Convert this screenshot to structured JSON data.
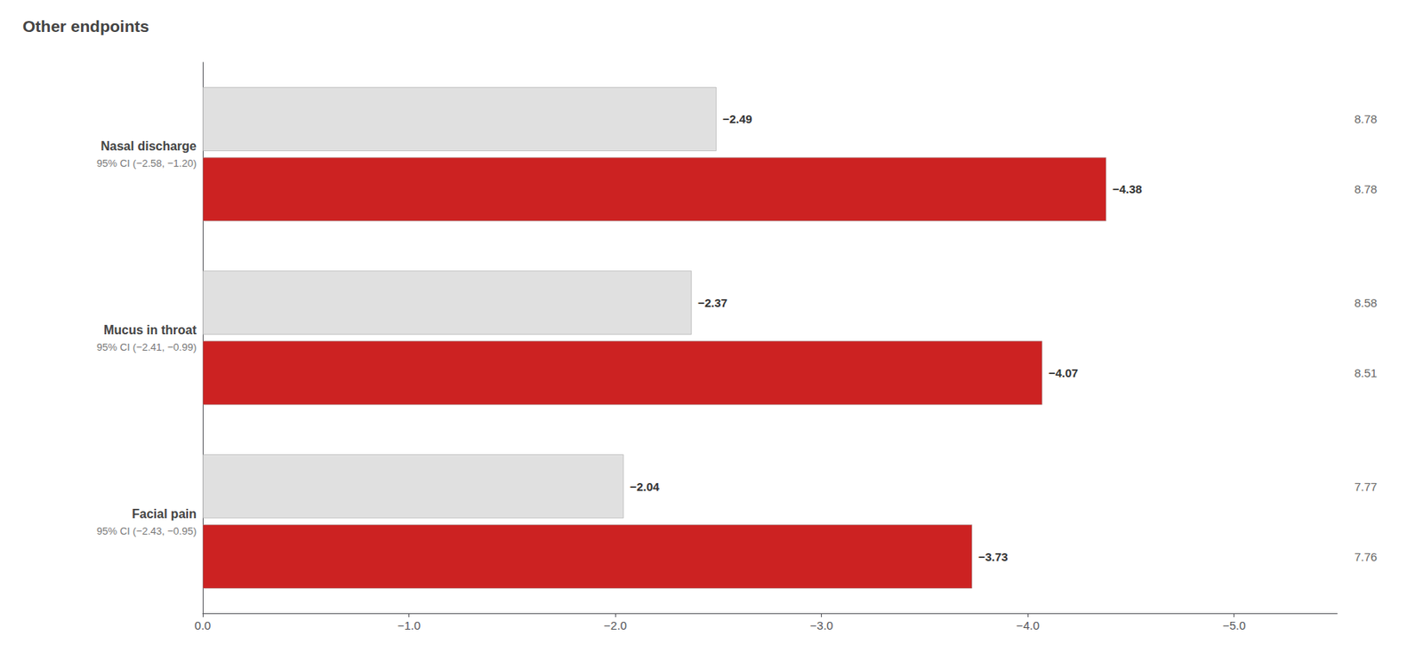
{
  "chart_data": {
    "type": "bar",
    "orientation": "horizontal",
    "title": "Other endpoints",
    "categories": [
      "Nasal discharge",
      "Mucus in throat",
      "Facial pain"
    ],
    "category_notes": [
      "95% CI (−2.58, −1.20)",
      "95% CI (−2.41, −0.99)",
      "95% CI (−2.43, −0.95)"
    ],
    "series": [
      {
        "color": "#e0e0e0",
        "values": [
          -2.49,
          -2.37,
          -2.04
        ],
        "value_labels": [
          "−2.49",
          "−2.37",
          "−2.04"
        ],
        "end_labels": [
          "8.78",
          "8.58",
          "7.77"
        ]
      },
      {
        "color": "#cc2222",
        "values": [
          -4.38,
          -4.07,
          -3.73
        ],
        "value_labels": [
          "−4.38",
          "−4.07",
          "−3.73"
        ],
        "end_labels": [
          "8.78",
          "8.51",
          "7.76"
        ]
      }
    ],
    "xlim": [
      0,
      -5.5
    ],
    "xticks": [
      {
        "value": 0,
        "label": "0.0"
      },
      {
        "value": -1,
        "label": "−1.0"
      },
      {
        "value": -2,
        "label": "−2.0"
      },
      {
        "value": -3,
        "label": "−3.0"
      },
      {
        "value": -4,
        "label": "−4.0"
      },
      {
        "value": -5,
        "label": "−5.0"
      }
    ],
    "grid": false,
    "data_labels": true
  }
}
